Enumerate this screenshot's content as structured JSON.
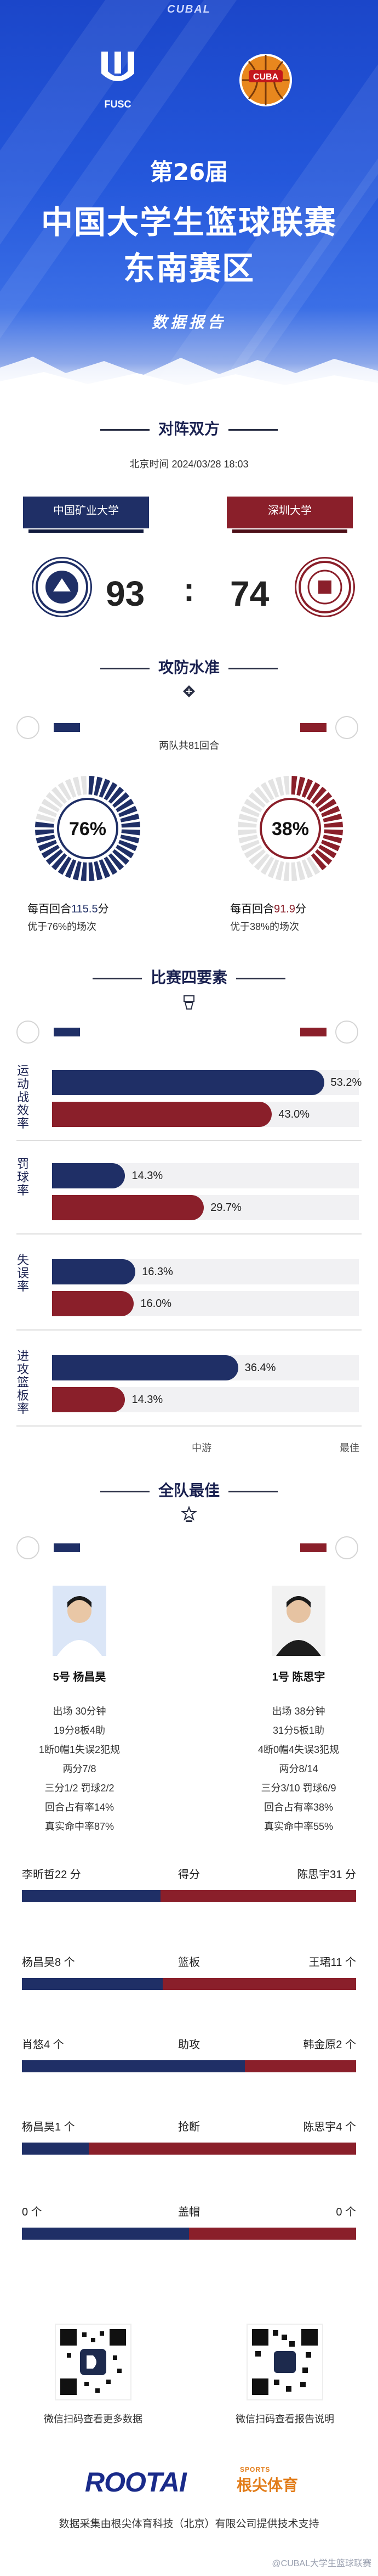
{
  "hero": {
    "brand_top": "CUBAL",
    "left_logo_text": "FUSC",
    "edition": "第26届",
    "title_line1": "中国大学生篮球联赛",
    "title_line2": "东南赛区",
    "subtitle": "数据报告"
  },
  "matchup": {
    "section_title": "对阵双方",
    "time_label": "北京时间",
    "time_value": "2024/03/28 18:03",
    "home_team": "中国矿业大学",
    "away_team": "深圳大学",
    "home_score": "93",
    "colon": ":",
    "away_score": "74",
    "home_color": "#1f2f66",
    "away_color": "#8a1f2a"
  },
  "offense_defense": {
    "section_title": "攻防水准",
    "icon": "whistle-icon",
    "possessions_note": "两队共81回合",
    "home_percentile": 76,
    "home_percentile_text": "76%",
    "away_percentile": 38,
    "away_percentile_text": "38%",
    "home_per100_prefix": "每百回合",
    "home_per100_value": "115.5",
    "home_per100_suffix": "分",
    "away_per100_prefix": "每百回合",
    "away_per100_value": "91.9",
    "away_per100_suffix": "分",
    "home_better": "优于76%的场次",
    "away_better": "优于38%的场次"
  },
  "four_factors": {
    "section_title": "比赛四要素",
    "icon": "hoop-icon",
    "axis_mid": "中游",
    "axis_best": "最佳",
    "factors": [
      {
        "label": "运动战效率",
        "home": 53.2,
        "home_text": "53.2%",
        "away": 43.0,
        "away_text": "43.0%"
      },
      {
        "label": "罚球率",
        "home": 14.3,
        "home_text": "14.3%",
        "away": 29.7,
        "away_text": "29.7%"
      },
      {
        "label": "失误率",
        "home": 16.3,
        "home_text": "16.3%",
        "away": 16.0,
        "away_text": "16.0%"
      },
      {
        "label": "进攻篮板率",
        "home": 36.4,
        "home_text": "36.4%",
        "away": 14.3,
        "away_text": "14.3%"
      }
    ]
  },
  "mvp": {
    "section_title": "全队最佳",
    "icon": "star-trophy-icon",
    "home_player": {
      "name": "5号 杨昌昊",
      "lines": [
        "出场 30分钟",
        "19分8板4助",
        "1断0帽1失误2犯规",
        "两分7/8",
        "三分1/2 罚球2/2",
        "回合占有率14%",
        "真实命中率87%"
      ]
    },
    "away_player": {
      "name": "1号 陈思宇",
      "lines": [
        "出场 38分钟",
        "31分5板1助",
        "4断0帽4失误3犯规",
        "两分8/14",
        "三分3/10 罚球6/9",
        "回合占有率38%",
        "真实命中率55%"
      ]
    },
    "comparisons": [
      {
        "category": "得分",
        "home_label": "李昕哲22 分",
        "away_label": "陈思宇31 分",
        "home": 22,
        "away": 31
      },
      {
        "category": "篮板",
        "home_label": "杨昌昊8 个",
        "away_label": "王珺11 个",
        "home": 8,
        "away": 11
      },
      {
        "category": "助攻",
        "home_label": "肖悠4 个",
        "away_label": "韩金原2 个",
        "home": 4,
        "away": 2
      },
      {
        "category": "抢断",
        "home_label": "杨昌昊1 个",
        "away_label": "陈思宇4 个",
        "home": 1,
        "away": 4
      },
      {
        "category": "盖帽",
        "home_label": "0 个",
        "away_label": "0 个",
        "home": 0,
        "away": 0
      }
    ]
  },
  "footer": {
    "qr_left_caption": "微信扫码查看更多数据",
    "qr_right_caption": "微信扫码查看报告说明",
    "brand": "ROOTAI",
    "brand_sports": "SPORTS",
    "brand_cn": "根尖体育",
    "note": "数据采集由根尖体育科技（北京）有限公司提供技术支持",
    "watermark": "@CUBAL大学生篮球联赛"
  }
}
